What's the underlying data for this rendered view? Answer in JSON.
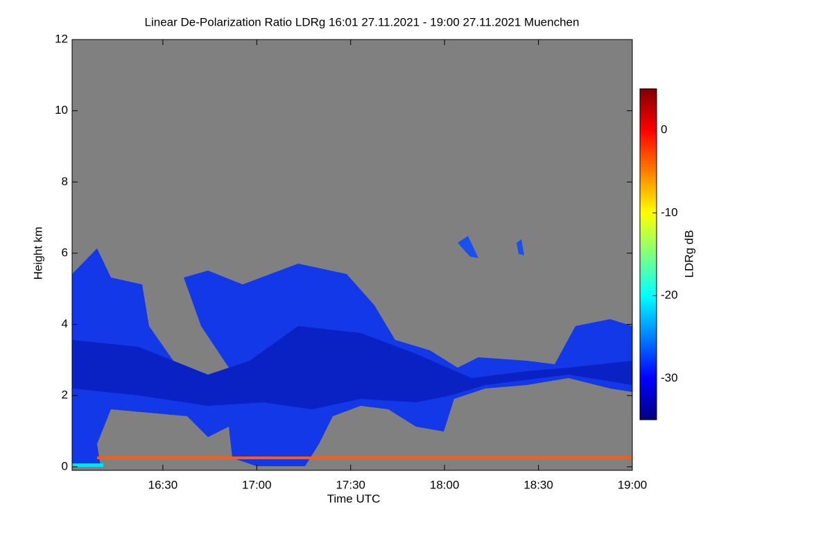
{
  "chart_data": {
    "type": "heatmap",
    "title": "Linear De-Polarization Ratio LDRg   16:01 27.11.2021 - 19:00 27.11.2021 Muenchen",
    "x_label": "Time UTC",
    "y_label": "Height km",
    "xlim": [
      961,
      1140
    ],
    "xticks": [
      {
        "value": 990,
        "label": "16:30"
      },
      {
        "value": 1020,
        "label": "17:00"
      },
      {
        "value": 1050,
        "label": "17:30"
      },
      {
        "value": 1080,
        "label": "18:00"
      },
      {
        "value": 1110,
        "label": "18:30"
      },
      {
        "value": 1140,
        "label": "19:00"
      }
    ],
    "ylim": [
      -0.1,
      12
    ],
    "yticks": [
      0,
      2,
      4,
      6,
      8,
      10,
      12
    ],
    "colorbar": {
      "label": "LDRg dB",
      "clim": [
        -35,
        5
      ],
      "ticks": [
        0,
        -10,
        -20,
        -30
      ],
      "colormap": [
        "#00007f",
        "#0000ff",
        "#007fff",
        "#00ffff",
        "#7fff7f",
        "#ffff00",
        "#ff7f00",
        "#ff0000",
        "#7f0000"
      ]
    },
    "background_color": "#808080"
  }
}
